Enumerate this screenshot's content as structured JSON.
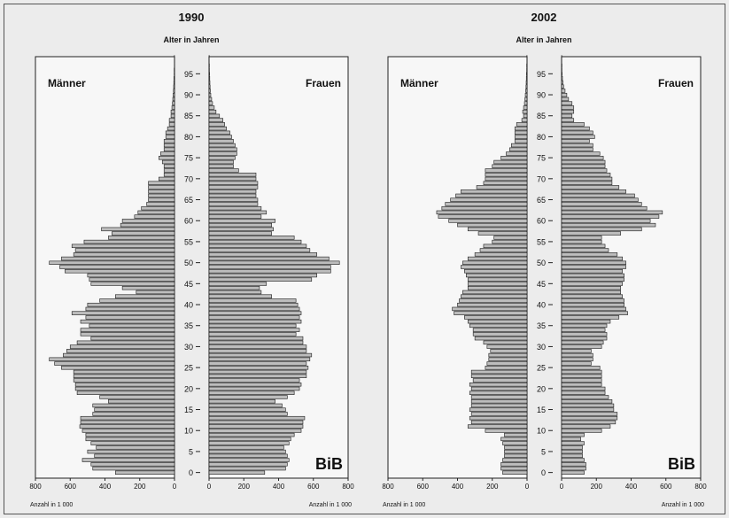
{
  "chart_data": [
    {
      "type": "bar",
      "title": "1990",
      "subtitle": "Alter in Jahren",
      "left_label": "Männer",
      "right_label": "Frauen",
      "xlabel": "Anzahl in 1 000",
      "xlim": [
        0,
        800
      ],
      "x_ticks": [
        "800",
        "600",
        "400",
        "200",
        "0"
      ],
      "x_ticks_right": [
        "0",
        "200",
        "400",
        "600",
        "800"
      ],
      "y_ticks": [
        "0",
        "5",
        "10",
        "15",
        "20",
        "25",
        "30",
        "35",
        "40",
        "45",
        "50",
        "55",
        "60",
        "65",
        "70",
        "75",
        "80",
        "85",
        "90",
        "95"
      ],
      "ages": [
        0,
        1,
        2,
        3,
        4,
        5,
        6,
        7,
        8,
        9,
        10,
        11,
        12,
        13,
        14,
        15,
        16,
        17,
        18,
        19,
        20,
        21,
        22,
        23,
        24,
        25,
        26,
        27,
        28,
        29,
        30,
        31,
        32,
        33,
        34,
        35,
        36,
        37,
        38,
        39,
        40,
        41,
        42,
        43,
        44,
        45,
        46,
        47,
        48,
        49,
        50,
        51,
        52,
        53,
        54,
        55,
        56,
        57,
        58,
        59,
        60,
        61,
        62,
        63,
        64,
        65,
        66,
        67,
        68,
        69,
        70,
        71,
        72,
        73,
        74,
        75,
        76,
        77,
        78,
        79,
        80,
        81,
        82,
        83,
        84,
        85,
        86,
        87,
        88,
        89,
        90,
        91,
        92,
        93,
        94,
        95,
        96,
        97,
        98,
        99
      ],
      "male": [
        340,
        470,
        480,
        530,
        460,
        500,
        450,
        480,
        510,
        510,
        530,
        545,
        540,
        540,
        470,
        460,
        470,
        380,
        430,
        560,
        570,
        570,
        580,
        580,
        580,
        650,
        690,
        720,
        640,
        620,
        600,
        560,
        480,
        540,
        540,
        490,
        540,
        510,
        590,
        510,
        500,
        430,
        340,
        220,
        300,
        480,
        490,
        500,
        630,
        660,
        720,
        650,
        580,
        570,
        590,
        520,
        380,
        360,
        420,
        310,
        300,
        230,
        210,
        190,
        160,
        150,
        150,
        150,
        150,
        150,
        90,
        60,
        60,
        60,
        70,
        90,
        80,
        60,
        60,
        60,
        50,
        50,
        40,
        30,
        30,
        20,
        20,
        15,
        12,
        10,
        8,
        6,
        5,
        4,
        3,
        2,
        2,
        1,
        1,
        1
      ],
      "female": [
        320,
        440,
        450,
        460,
        450,
        440,
        430,
        460,
        470,
        490,
        530,
        540,
        540,
        550,
        450,
        440,
        420,
        380,
        450,
        490,
        520,
        530,
        520,
        560,
        560,
        570,
        560,
        580,
        590,
        560,
        560,
        540,
        540,
        500,
        520,
        500,
        530,
        520,
        530,
        520,
        510,
        500,
        360,
        300,
        290,
        330,
        590,
        620,
        700,
        700,
        750,
        690,
        620,
        580,
        560,
        530,
        490,
        360,
        370,
        360,
        380,
        300,
        330,
        300,
        280,
        280,
        270,
        270,
        280,
        280,
        270,
        270,
        170,
        140,
        140,
        150,
        160,
        160,
        150,
        140,
        130,
        120,
        100,
        90,
        80,
        60,
        40,
        30,
        20,
        15,
        10,
        8,
        6,
        5,
        4,
        3,
        2,
        2,
        1,
        1
      ]
    },
    {
      "type": "bar",
      "title": "2002",
      "subtitle": "Alter in Jahren",
      "left_label": "Männer",
      "right_label": "Frauen",
      "xlabel": "Anzahl in 1 000",
      "xlim": [
        0,
        800
      ],
      "x_ticks": [
        "800",
        "600",
        "400",
        "200",
        "0"
      ],
      "x_ticks_right": [
        "0",
        "200",
        "400",
        "600",
        "800"
      ],
      "y_ticks": [
        "0",
        "5",
        "10",
        "15",
        "20",
        "25",
        "30",
        "35",
        "40",
        "45",
        "50",
        "55",
        "60",
        "65",
        "70",
        "75",
        "80",
        "85",
        "90",
        "95"
      ],
      "ages": [
        0,
        1,
        2,
        3,
        4,
        5,
        6,
        7,
        8,
        9,
        10,
        11,
        12,
        13,
        14,
        15,
        16,
        17,
        18,
        19,
        20,
        21,
        22,
        23,
        24,
        25,
        26,
        27,
        28,
        29,
        30,
        31,
        32,
        33,
        34,
        35,
        36,
        37,
        38,
        39,
        40,
        41,
        42,
        43,
        44,
        45,
        46,
        47,
        48,
        49,
        50,
        51,
        52,
        53,
        54,
        55,
        56,
        57,
        58,
        59,
        60,
        61,
        62,
        63,
        64,
        65,
        66,
        67,
        68,
        69,
        70,
        71,
        72,
        73,
        74,
        75,
        76,
        77,
        78,
        79,
        80,
        81,
        82,
        83,
        84,
        85,
        86,
        87,
        88,
        89,
        90,
        91,
        92,
        93,
        94,
        95,
        96,
        97,
        98,
        99
      ],
      "male": [
        140,
        150,
        150,
        140,
        130,
        130,
        130,
        140,
        150,
        130,
        240,
        340,
        320,
        330,
        320,
        330,
        320,
        320,
        320,
        330,
        320,
        330,
        310,
        320,
        320,
        240,
        230,
        220,
        220,
        210,
        230,
        250,
        300,
        310,
        310,
        330,
        340,
        360,
        420,
        430,
        400,
        390,
        380,
        370,
        340,
        340,
        340,
        350,
        360,
        380,
        370,
        340,
        300,
        270,
        250,
        200,
        190,
        280,
        340,
        400,
        450,
        510,
        520,
        490,
        470,
        440,
        410,
        380,
        290,
        250,
        240,
        240,
        240,
        200,
        190,
        150,
        120,
        100,
        90,
        70,
        70,
        70,
        70,
        60,
        30,
        20,
        25,
        20,
        15,
        12,
        10,
        8,
        6,
        5,
        4,
        3,
        2,
        2,
        1,
        1
      ],
      "female": [
        130,
        140,
        140,
        130,
        120,
        120,
        120,
        130,
        110,
        130,
        230,
        280,
        310,
        320,
        320,
        300,
        300,
        290,
        270,
        250,
        250,
        230,
        230,
        230,
        230,
        220,
        170,
        180,
        180,
        170,
        230,
        240,
        260,
        260,
        250,
        260,
        280,
        330,
        380,
        370,
        360,
        360,
        350,
        340,
        340,
        350,
        360,
        360,
        350,
        370,
        370,
        350,
        320,
        270,
        250,
        230,
        230,
        340,
        460,
        540,
        510,
        560,
        580,
        490,
        460,
        440,
        420,
        370,
        330,
        290,
        290,
        280,
        260,
        250,
        250,
        240,
        220,
        180,
        180,
        160,
        190,
        180,
        160,
        130,
        70,
        60,
        70,
        70,
        60,
        40,
        30,
        20,
        12,
        8,
        5,
        3,
        2,
        2,
        1,
        1
      ]
    }
  ],
  "logo": "BiB"
}
